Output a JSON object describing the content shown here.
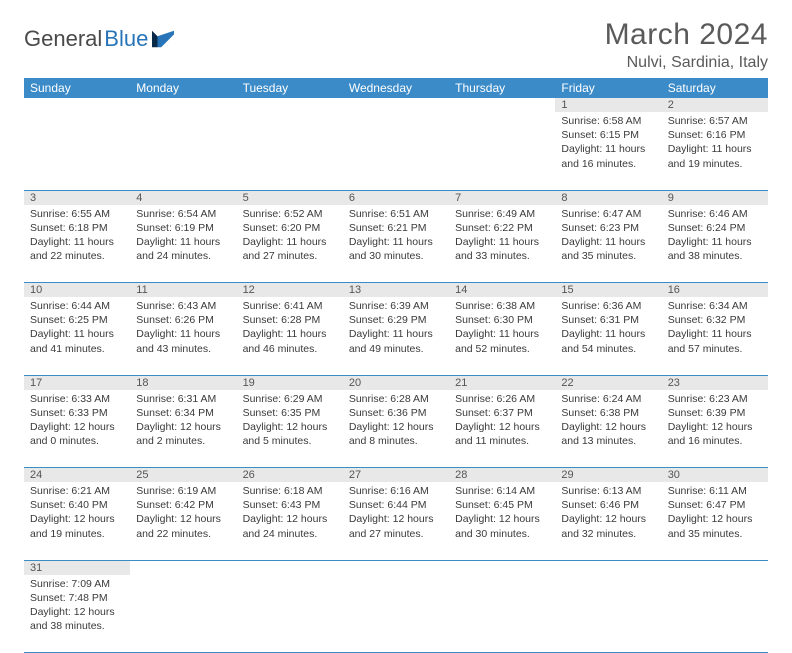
{
  "brand": {
    "name1": "General",
    "name2": "Blue"
  },
  "title": "March 2024",
  "location": "Nulvi, Sardinia, Italy",
  "colors": {
    "header_bg": "#3b8bc9",
    "header_text": "#ffffff",
    "daynum_bg": "#e8e8e8",
    "border": "#3b8bc9",
    "brand_blue": "#2874b8"
  },
  "weekdays": [
    "Sunday",
    "Monday",
    "Tuesday",
    "Wednesday",
    "Thursday",
    "Friday",
    "Saturday"
  ],
  "weeks": [
    [
      null,
      null,
      null,
      null,
      null,
      {
        "d": "1",
        "sr": "Sunrise: 6:58 AM",
        "ss": "Sunset: 6:15 PM",
        "dl": "Daylight: 11 hours and 16 minutes."
      },
      {
        "d": "2",
        "sr": "Sunrise: 6:57 AM",
        "ss": "Sunset: 6:16 PM",
        "dl": "Daylight: 11 hours and 19 minutes."
      }
    ],
    [
      {
        "d": "3",
        "sr": "Sunrise: 6:55 AM",
        "ss": "Sunset: 6:18 PM",
        "dl": "Daylight: 11 hours and 22 minutes."
      },
      {
        "d": "4",
        "sr": "Sunrise: 6:54 AM",
        "ss": "Sunset: 6:19 PM",
        "dl": "Daylight: 11 hours and 24 minutes."
      },
      {
        "d": "5",
        "sr": "Sunrise: 6:52 AM",
        "ss": "Sunset: 6:20 PM",
        "dl": "Daylight: 11 hours and 27 minutes."
      },
      {
        "d": "6",
        "sr": "Sunrise: 6:51 AM",
        "ss": "Sunset: 6:21 PM",
        "dl": "Daylight: 11 hours and 30 minutes."
      },
      {
        "d": "7",
        "sr": "Sunrise: 6:49 AM",
        "ss": "Sunset: 6:22 PM",
        "dl": "Daylight: 11 hours and 33 minutes."
      },
      {
        "d": "8",
        "sr": "Sunrise: 6:47 AM",
        "ss": "Sunset: 6:23 PM",
        "dl": "Daylight: 11 hours and 35 minutes."
      },
      {
        "d": "9",
        "sr": "Sunrise: 6:46 AM",
        "ss": "Sunset: 6:24 PM",
        "dl": "Daylight: 11 hours and 38 minutes."
      }
    ],
    [
      {
        "d": "10",
        "sr": "Sunrise: 6:44 AM",
        "ss": "Sunset: 6:25 PM",
        "dl": "Daylight: 11 hours and 41 minutes."
      },
      {
        "d": "11",
        "sr": "Sunrise: 6:43 AM",
        "ss": "Sunset: 6:26 PM",
        "dl": "Daylight: 11 hours and 43 minutes."
      },
      {
        "d": "12",
        "sr": "Sunrise: 6:41 AM",
        "ss": "Sunset: 6:28 PM",
        "dl": "Daylight: 11 hours and 46 minutes."
      },
      {
        "d": "13",
        "sr": "Sunrise: 6:39 AM",
        "ss": "Sunset: 6:29 PM",
        "dl": "Daylight: 11 hours and 49 minutes."
      },
      {
        "d": "14",
        "sr": "Sunrise: 6:38 AM",
        "ss": "Sunset: 6:30 PM",
        "dl": "Daylight: 11 hours and 52 minutes."
      },
      {
        "d": "15",
        "sr": "Sunrise: 6:36 AM",
        "ss": "Sunset: 6:31 PM",
        "dl": "Daylight: 11 hours and 54 minutes."
      },
      {
        "d": "16",
        "sr": "Sunrise: 6:34 AM",
        "ss": "Sunset: 6:32 PM",
        "dl": "Daylight: 11 hours and 57 minutes."
      }
    ],
    [
      {
        "d": "17",
        "sr": "Sunrise: 6:33 AM",
        "ss": "Sunset: 6:33 PM",
        "dl": "Daylight: 12 hours and 0 minutes."
      },
      {
        "d": "18",
        "sr": "Sunrise: 6:31 AM",
        "ss": "Sunset: 6:34 PM",
        "dl": "Daylight: 12 hours and 2 minutes."
      },
      {
        "d": "19",
        "sr": "Sunrise: 6:29 AM",
        "ss": "Sunset: 6:35 PM",
        "dl": "Daylight: 12 hours and 5 minutes."
      },
      {
        "d": "20",
        "sr": "Sunrise: 6:28 AM",
        "ss": "Sunset: 6:36 PM",
        "dl": "Daylight: 12 hours and 8 minutes."
      },
      {
        "d": "21",
        "sr": "Sunrise: 6:26 AM",
        "ss": "Sunset: 6:37 PM",
        "dl": "Daylight: 12 hours and 11 minutes."
      },
      {
        "d": "22",
        "sr": "Sunrise: 6:24 AM",
        "ss": "Sunset: 6:38 PM",
        "dl": "Daylight: 12 hours and 13 minutes."
      },
      {
        "d": "23",
        "sr": "Sunrise: 6:23 AM",
        "ss": "Sunset: 6:39 PM",
        "dl": "Daylight: 12 hours and 16 minutes."
      }
    ],
    [
      {
        "d": "24",
        "sr": "Sunrise: 6:21 AM",
        "ss": "Sunset: 6:40 PM",
        "dl": "Daylight: 12 hours and 19 minutes."
      },
      {
        "d": "25",
        "sr": "Sunrise: 6:19 AM",
        "ss": "Sunset: 6:42 PM",
        "dl": "Daylight: 12 hours and 22 minutes."
      },
      {
        "d": "26",
        "sr": "Sunrise: 6:18 AM",
        "ss": "Sunset: 6:43 PM",
        "dl": "Daylight: 12 hours and 24 minutes."
      },
      {
        "d": "27",
        "sr": "Sunrise: 6:16 AM",
        "ss": "Sunset: 6:44 PM",
        "dl": "Daylight: 12 hours and 27 minutes."
      },
      {
        "d": "28",
        "sr": "Sunrise: 6:14 AM",
        "ss": "Sunset: 6:45 PM",
        "dl": "Daylight: 12 hours and 30 minutes."
      },
      {
        "d": "29",
        "sr": "Sunrise: 6:13 AM",
        "ss": "Sunset: 6:46 PM",
        "dl": "Daylight: 12 hours and 32 minutes."
      },
      {
        "d": "30",
        "sr": "Sunrise: 6:11 AM",
        "ss": "Sunset: 6:47 PM",
        "dl": "Daylight: 12 hours and 35 minutes."
      }
    ],
    [
      {
        "d": "31",
        "sr": "Sunrise: 7:09 AM",
        "ss": "Sunset: 7:48 PM",
        "dl": "Daylight: 12 hours and 38 minutes."
      },
      null,
      null,
      null,
      null,
      null,
      null
    ]
  ]
}
